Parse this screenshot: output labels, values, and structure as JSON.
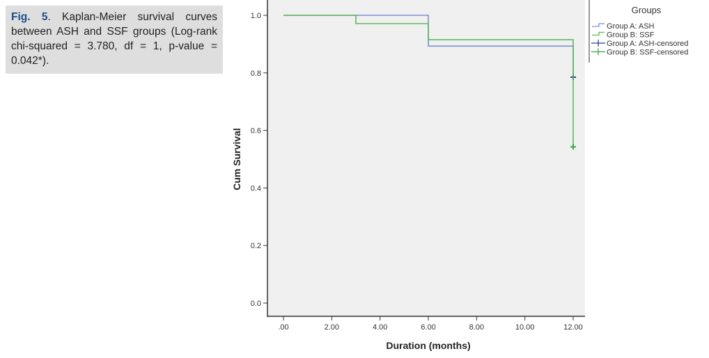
{
  "caption": {
    "label": "Fig. 5",
    "text": ". Kaplan-Meier survival curves between ASH and SSF groups (Log-rank chi-squared = 3.780, df = 1, p-value = 0.042*)."
  },
  "chart_data": {
    "type": "line",
    "subtype": "kaplan-meier step",
    "xlabel": "Duration (months)",
    "ylabel": "Cum Survival",
    "xlim": [
      0,
      12
    ],
    "ylim": [
      0,
      1.0
    ],
    "xticks": [
      ".00",
      "2.00",
      "4.00",
      "6.00",
      "8.00",
      "10.00",
      "12.00"
    ],
    "xtick_values": [
      0,
      2,
      4,
      6,
      8,
      10,
      12
    ],
    "yticks": [
      "0.0",
      "0.2",
      "0.4",
      "0.6",
      "0.8",
      "1.0"
    ],
    "ytick_values": [
      0,
      0.2,
      0.4,
      0.6,
      0.8,
      1.0
    ],
    "legend_title": "Groups",
    "legend_position": "right",
    "legend": [
      "Group A: ASH",
      "Group B: SSF",
      "Group A: ASH-censored",
      "Group B: SSF-censored"
    ],
    "series": [
      {
        "name": "Group A: ASH",
        "color": "#7b8fd0",
        "steps": [
          [
            0,
            1.0
          ],
          [
            6,
            0.893
          ],
          [
            12,
            0.785
          ]
        ],
        "censored": [
          [
            12,
            0.785
          ]
        ],
        "censor_color": "#2b3f9a"
      },
      {
        "name": "Group B: SSF",
        "color": "#5cb85c",
        "steps": [
          [
            0,
            1.0
          ],
          [
            3,
            0.971
          ],
          [
            6,
            0.915
          ],
          [
            12,
            0.543
          ]
        ],
        "censored": [
          [
            12,
            0.543
          ]
        ],
        "censor_color": "#3aa63a"
      }
    ]
  }
}
